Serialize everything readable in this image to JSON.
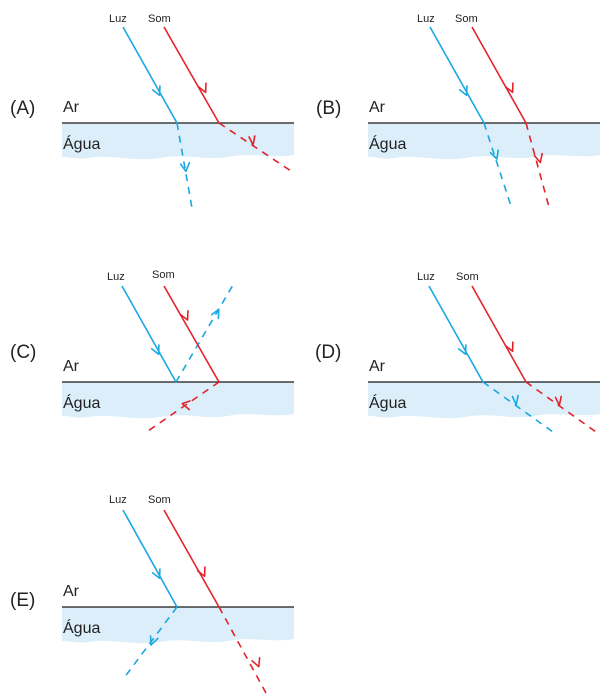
{
  "colors": {
    "light": "#19a8e0",
    "sound": "#e3232c",
    "water": "#dbeef9",
    "surface": "#1a1a1a"
  },
  "panels": [
    {
      "id": "A",
      "label": "(A)",
      "air_label": "Ar",
      "water_label": "Água",
      "light_label": "Luz",
      "sound_label": "Som"
    },
    {
      "id": "B",
      "label": "(B)",
      "air_label": "Ar",
      "water_label": "Água",
      "light_label": "Luz",
      "sound_label": "Som"
    },
    {
      "id": "C",
      "label": "(C)",
      "air_label": "Ar",
      "water_label": "Água",
      "light_label": "Luz",
      "sound_label": "Som"
    },
    {
      "id": "D",
      "label": "(D)",
      "air_label": "Ar",
      "water_label": "Água",
      "light_label": "Luz",
      "sound_label": "Som"
    },
    {
      "id": "E",
      "label": "(E)",
      "air_label": "Ar",
      "water_label": "Água",
      "light_label": "Luz",
      "sound_label": "Som"
    }
  ]
}
